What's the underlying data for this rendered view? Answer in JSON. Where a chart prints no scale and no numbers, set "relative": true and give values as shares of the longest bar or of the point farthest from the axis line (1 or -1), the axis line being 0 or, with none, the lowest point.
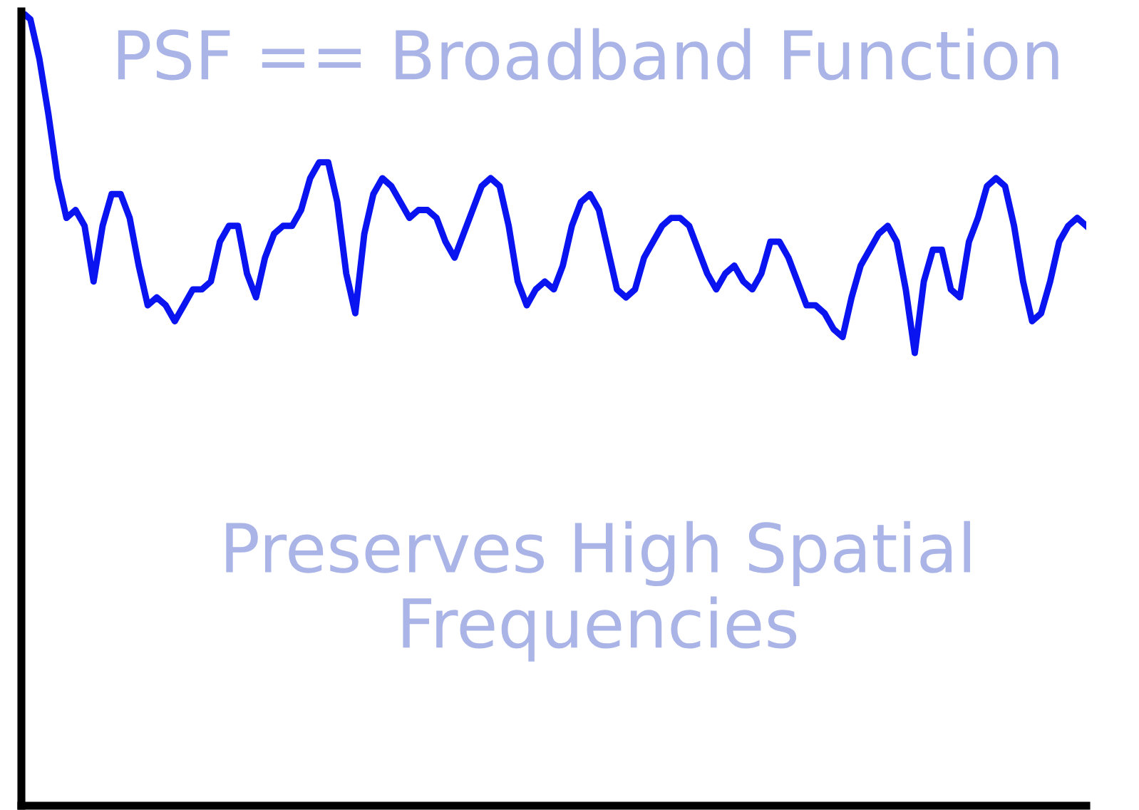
{
  "chart_data": {
    "type": "line",
    "relative": true,
    "title": "PSF == Broadband Function",
    "annotations": [
      "Preserves High Spatial Frequencies"
    ],
    "categories": [
      null,
      null,
      null,
      null,
      null,
      null,
      null,
      null,
      null,
      null,
      null,
      null,
      null,
      null,
      null,
      null,
      null,
      null,
      null,
      null,
      null,
      null,
      null,
      null,
      null,
      null,
      null,
      null,
      null,
      null,
      null,
      null,
      null,
      null,
      null,
      null,
      null,
      null,
      null,
      null,
      null,
      null,
      null,
      null,
      null,
      null,
      null,
      null,
      null,
      null,
      null,
      null,
      null,
      null,
      null,
      null,
      null,
      null,
      null,
      null,
      null,
      null,
      null,
      null,
      null,
      null,
      null,
      null,
      null,
      null,
      null,
      null,
      null,
      null,
      null,
      null,
      null,
      null,
      null,
      null,
      null,
      null,
      null,
      null,
      null,
      null,
      null,
      null,
      null,
      null,
      null,
      null,
      null,
      null,
      null,
      null,
      null,
      null,
      null,
      null,
      null,
      null,
      null,
      null,
      null,
      null,
      null,
      null,
      null,
      null,
      null,
      null,
      null,
      null,
      null,
      null,
      null,
      null,
      null
    ],
    "series": [
      {
        "color": "#0a14f0",
        "values": [
          1.0,
          0.99,
          0.94,
          0.87,
          0.79,
          0.74,
          0.75,
          0.73,
          0.66,
          0.73,
          0.77,
          0.77,
          0.74,
          0.68,
          0.63,
          0.64,
          0.63,
          0.61,
          0.63,
          0.65,
          0.65,
          0.66,
          0.71,
          0.73,
          0.73,
          0.67,
          0.64,
          0.69,
          0.72,
          0.73,
          0.73,
          0.75,
          0.79,
          0.81,
          0.81,
          0.76,
          0.67,
          0.62,
          0.72,
          0.77,
          0.79,
          0.78,
          0.76,
          0.74,
          0.75,
          0.75,
          0.74,
          0.71,
          0.69,
          0.72,
          0.75,
          0.78,
          0.79,
          0.78,
          0.73,
          0.66,
          0.63,
          0.65,
          0.66,
          0.65,
          0.68,
          0.73,
          0.76,
          0.77,
          0.75,
          0.7,
          0.65,
          0.64,
          0.65,
          0.69,
          0.71,
          0.73,
          0.74,
          0.74,
          0.73,
          0.7,
          0.67,
          0.65,
          0.67,
          0.68,
          0.66,
          0.65,
          0.67,
          0.71,
          0.71,
          0.69,
          0.66,
          0.63,
          0.63,
          0.62,
          0.6,
          0.59,
          0.64,
          0.68,
          0.7,
          0.72,
          0.73,
          0.71,
          0.65,
          0.57,
          0.66,
          0.7,
          0.7,
          0.65,
          0.64,
          0.71,
          0.74,
          0.78,
          0.79,
          0.78,
          0.73,
          0.66,
          0.61,
          0.62,
          0.66,
          0.71,
          0.73,
          0.74,
          0.73
        ]
      }
    ],
    "grid": false,
    "marker": "none",
    "line_style": "solid"
  }
}
